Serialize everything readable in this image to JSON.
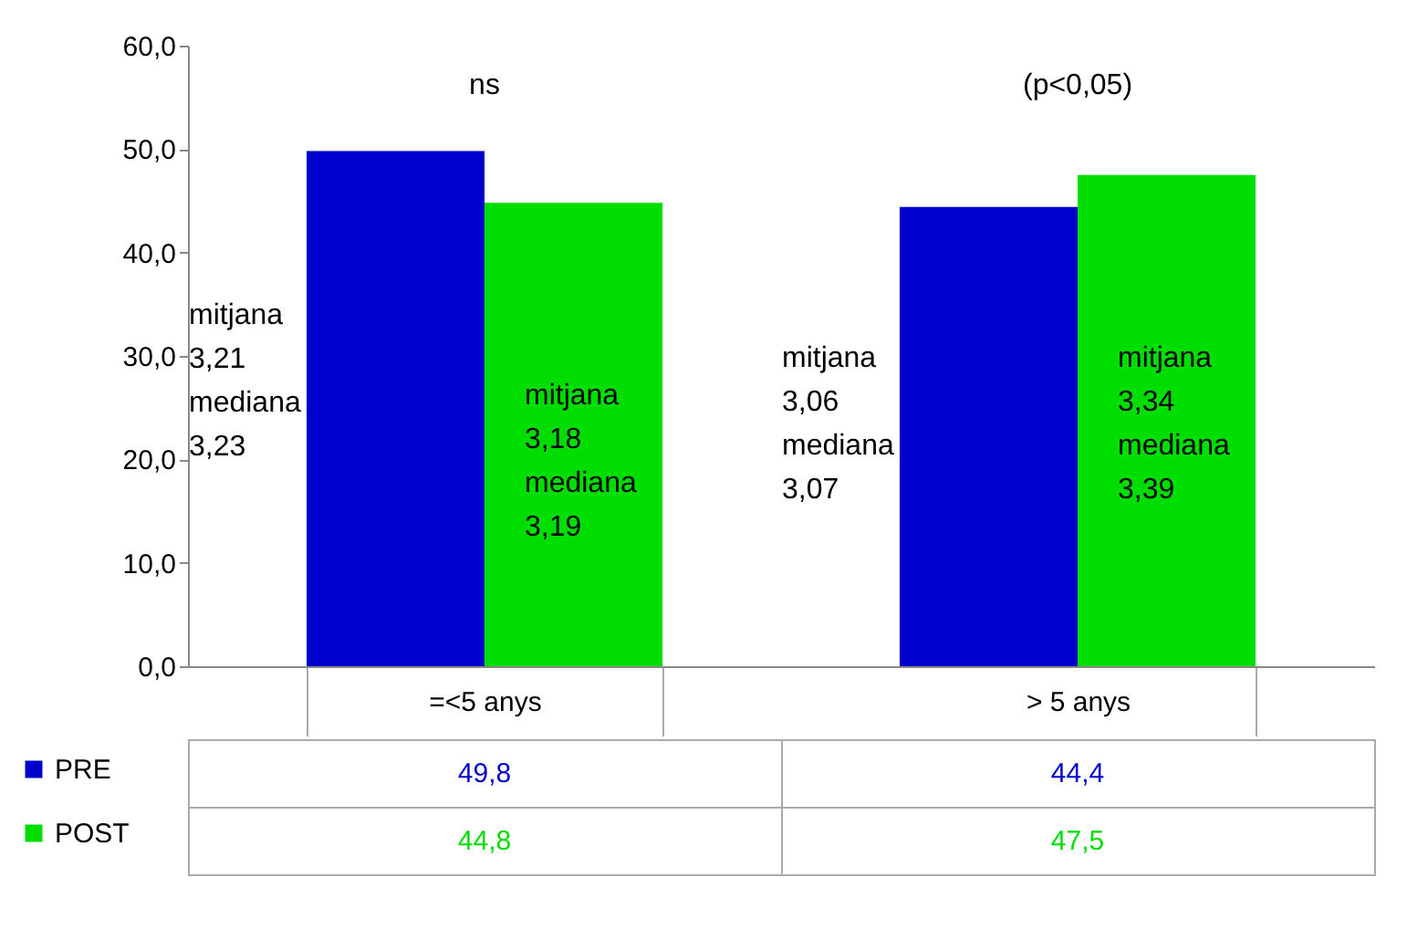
{
  "chart_data": {
    "type": "bar",
    "categories": [
      "=<5 anys",
      "> 5 anys"
    ],
    "series": [
      {
        "name": "PRE",
        "color": "#0000cc",
        "values": [
          49.8,
          44.4
        ],
        "value_labels": [
          "49,8",
          "44,4"
        ]
      },
      {
        "name": "POST",
        "color": "#00dd00",
        "values": [
          44.8,
          47.5
        ],
        "value_labels": [
          "44,8",
          "47,5"
        ]
      }
    ],
    "ylim": [
      0,
      60
    ],
    "yticks": [
      {
        "value": 0,
        "label": "0,0"
      },
      {
        "value": 10,
        "label": "10,0"
      },
      {
        "value": 20,
        "label": "20,0"
      },
      {
        "value": 30,
        "label": "30,0"
      },
      {
        "value": 40,
        "label": "40,0"
      },
      {
        "value": 50,
        "label": "50,0"
      },
      {
        "value": 60,
        "label": "60,0"
      }
    ],
    "annotations": [
      "ns",
      "mitjana\n3,21\nmediana\n3,23",
      "mitjana\n3,18\nmediana\n3,19",
      "(p<0,05)",
      "mitjana\n3,06\nmediana\n3,07",
      "mitjana\n3,34\nmediana\n3,39"
    ],
    "grid": false,
    "legend": "bottom left"
  }
}
